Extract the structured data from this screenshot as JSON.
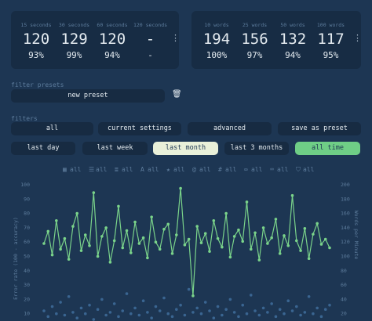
{
  "stats": {
    "time": [
      {
        "label": "15 seconds",
        "wpm": "120",
        "acc": "93%"
      },
      {
        "label": "30 seconds",
        "wpm": "129",
        "acc": "99%"
      },
      {
        "label": "60 seconds",
        "wpm": "120",
        "acc": "94%"
      },
      {
        "label": "120 seconds",
        "wpm": "-",
        "acc": "-"
      }
    ],
    "words": [
      {
        "label": "10 words",
        "wpm": "194",
        "acc": "100%"
      },
      {
        "label": "25 words",
        "wpm": "156",
        "acc": "97%"
      },
      {
        "label": "50 words",
        "wpm": "132",
        "acc": "94%"
      },
      {
        "label": "100 words",
        "wpm": "117",
        "acc": "95%"
      }
    ]
  },
  "filter_presets": {
    "label": "filter presets",
    "new_preset": "new preset"
  },
  "filters": {
    "label": "filters",
    "row1": [
      "all",
      "current settings",
      "advanced",
      "save as preset"
    ],
    "row2": [
      "last day",
      "last week",
      "last month",
      "last 3 months",
      "all time"
    ]
  },
  "tags": [
    "all",
    "all",
    "all",
    "all",
    "all",
    "all",
    "all",
    "all",
    "all",
    "all"
  ],
  "chart_data": {
    "type": "line",
    "y_label": "Error rate (100 - accuracy)",
    "y2_label": "Words per Minute",
    "ylim": [
      0,
      100
    ],
    "yticks": [
      10,
      20,
      30,
      40,
      50,
      60,
      70,
      80,
      90,
      100
    ],
    "y2lim": [
      0,
      200
    ],
    "y2ticks": [
      20,
      40,
      60,
      80,
      100,
      120,
      140,
      160,
      180,
      200
    ],
    "series": [
      {
        "type": "line",
        "axis": "y2",
        "color": "#7ad38a",
        "values": [
          118,
          135,
          102,
          150,
          110,
          125,
          96,
          142,
          160,
          108,
          130,
          115,
          189,
          100,
          128,
          140,
          92,
          122,
          170,
          112,
          136,
          105,
          148,
          118,
          126,
          98,
          155,
          120,
          110,
          138,
          145,
          104,
          130,
          195,
          116,
          124,
          45,
          142,
          119,
          132,
          107,
          150,
          125,
          113,
          160,
          99,
          128,
          137,
          121,
          176,
          110,
          133,
          95,
          140,
          118,
          126,
          152,
          104,
          129,
          115,
          185,
          122,
          108,
          139,
          97,
          131,
          146,
          117,
          124,
          112
        ]
      },
      {
        "type": "scatter",
        "color": "#3a6591",
        "values": [
          12,
          8,
          15,
          10,
          18,
          9,
          22,
          11,
          7,
          14,
          10,
          16,
          6,
          13,
          20,
          9,
          11,
          17,
          8,
          12,
          24,
          10,
          14,
          9,
          19,
          11,
          7,
          15,
          12,
          21,
          10,
          8,
          13,
          16,
          9,
          27,
          11,
          14,
          10,
          18,
          12,
          7,
          15,
          9,
          13,
          20,
          11,
          8,
          16,
          10,
          23,
          12,
          9,
          14,
          11,
          17,
          8,
          13,
          10,
          19,
          12,
          15,
          9,
          11,
          22,
          10,
          14,
          8,
          13,
          16
        ]
      }
    ]
  }
}
